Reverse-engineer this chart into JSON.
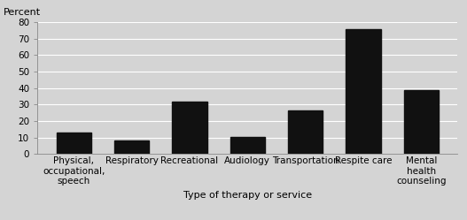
{
  "categories": [
    "Physical,\noccupational,\nspeech",
    "Respiratory",
    "Recreational",
    "Audiology",
    "Transportation",
    "Respite care",
    "Mental\nhealth\ncounseling"
  ],
  "values": [
    13,
    8,
    32,
    10.5,
    26.5,
    75.5,
    38.5
  ],
  "bar_color": "#111111",
  "background_color": "#d4d4d4",
  "plot_bg_color": "#d4d4d4",
  "ylabel": "Percent",
  "xlabel": "Type of therapy or service",
  "ylim": [
    0,
    80
  ],
  "yticks": [
    0,
    10,
    20,
    30,
    40,
    50,
    60,
    70,
    80
  ],
  "ylabel_fontsize": 8,
  "xlabel_fontsize": 8,
  "tick_fontsize": 7.5
}
